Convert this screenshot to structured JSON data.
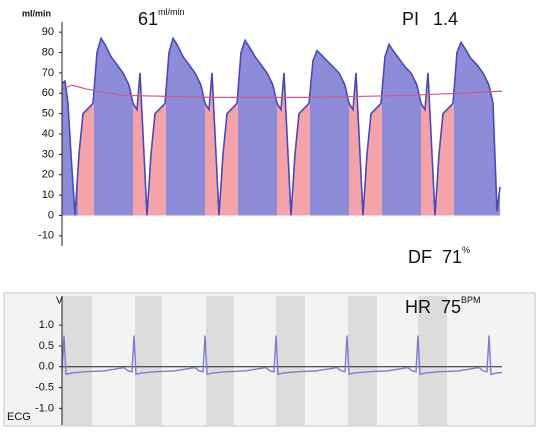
{
  "chart_data": [
    {
      "type": "area",
      "y_label": "ml/min",
      "readouts": [
        {
          "value": 61,
          "unit": "ml/min"
        },
        {
          "label": "PI",
          "value": 1.4
        },
        {
          "label": "DF",
          "value": 71,
          "unit": "%"
        }
      ],
      "x": [
        0,
        3,
        6,
        9,
        13,
        17,
        21,
        27,
        31,
        35,
        39,
        43,
        49,
        55,
        61,
        67,
        71,
        75,
        78,
        81,
        85,
        89,
        93,
        99,
        103,
        107,
        111,
        115,
        121,
        127,
        133,
        139,
        143,
        147,
        150,
        153,
        157,
        161,
        165,
        171,
        175,
        179,
        183,
        187,
        193,
        199,
        205,
        211,
        215,
        219,
        222,
        225,
        229,
        233,
        237,
        243,
        247,
        251,
        255,
        259,
        265,
        271,
        277,
        283,
        287,
        291,
        294,
        297,
        301,
        305,
        309,
        315,
        319,
        323,
        327,
        331,
        337,
        343,
        349,
        355,
        359,
        363,
        366,
        369,
        373,
        377,
        381,
        387,
        391,
        395,
        399,
        403,
        409,
        415,
        421,
        427,
        431,
        435,
        438
      ],
      "values": [
        65,
        66,
        55,
        30,
        0,
        30,
        50,
        53,
        55,
        80,
        87,
        84,
        78,
        74,
        70,
        64,
        55,
        52,
        70,
        40,
        0,
        30,
        50,
        53,
        55,
        80,
        87,
        84,
        78,
        74,
        70,
        64,
        55,
        52,
        70,
        40,
        0,
        30,
        50,
        53,
        55,
        80,
        86,
        83,
        78,
        74,
        70,
        64,
        55,
        52,
        70,
        40,
        0,
        30,
        50,
        53,
        55,
        76,
        81,
        79,
        76,
        73,
        70,
        64,
        55,
        52,
        70,
        40,
        0,
        30,
        50,
        53,
        55,
        78,
        84,
        81,
        77,
        73,
        70,
        64,
        55,
        52,
        70,
        40,
        0,
        30,
        50,
        53,
        55,
        80,
        85,
        82,
        77,
        74,
        70,
        64,
        55,
        2,
        14
      ],
      "color": "#8c8cd8",
      "line_color": "#4a4ab4",
      "diastole": [
        [
          16,
          32
        ],
        [
          71,
          104
        ],
        [
          143,
          176
        ],
        [
          215,
          248
        ],
        [
          287,
          320
        ],
        [
          359,
          392
        ]
      ],
      "diastole_color": "#f5a3ab",
      "mean": {
        "x": [
          0,
          10,
          25,
          60,
          150,
          250,
          350,
          440
        ],
        "values": [
          62,
          64,
          62,
          59,
          58,
          58,
          59,
          61
        ],
        "color": "#d2588a"
      },
      "xlim": [
        0,
        440
      ],
      "ylim": [
        -15,
        95
      ],
      "yticks": [
        -10,
        0,
        10,
        20,
        30,
        40,
        50,
        60,
        70,
        80,
        90
      ]
    },
    {
      "type": "line",
      "y_label": "V",
      "label": "ECG",
      "readouts": [
        {
          "label": "HR",
          "value": 75,
          "unit": "BPM"
        }
      ],
      "x": [
        0,
        2,
        4,
        10,
        24,
        42,
        62,
        66,
        70,
        72,
        74,
        80,
        94,
        112,
        133,
        137,
        141,
        143,
        145,
        151,
        165,
        183,
        204,
        208,
        212,
        214,
        216,
        222,
        236,
        254,
        275,
        279,
        283,
        285,
        287,
        293,
        307,
        325,
        346,
        350,
        354,
        356,
        358,
        364,
        378,
        396,
        417,
        421,
        425,
        427,
        429,
        435,
        440
      ],
      "values": [
        -0.12,
        0.75,
        -0.18,
        -0.15,
        -0.12,
        -0.1,
        -0.02,
        -0.1,
        -0.12,
        0.75,
        -0.18,
        -0.15,
        -0.12,
        -0.1,
        -0.02,
        -0.1,
        -0.12,
        0.75,
        -0.18,
        -0.15,
        -0.12,
        -0.1,
        -0.02,
        -0.1,
        -0.12,
        0.75,
        -0.18,
        -0.15,
        -0.12,
        -0.1,
        -0.02,
        -0.1,
        -0.12,
        0.75,
        -0.18,
        -0.15,
        -0.12,
        -0.1,
        -0.02,
        -0.1,
        -0.12,
        0.75,
        -0.18,
        -0.15,
        -0.12,
        -0.1,
        -0.02,
        -0.1,
        -0.12,
        0.75,
        -0.18,
        -0.15,
        -0.14
      ],
      "color": "#7b7bd2",
      "shaded": [
        [
          0,
          30
        ],
        [
          73,
          100
        ],
        [
          144,
          172
        ],
        [
          214,
          243
        ],
        [
          286,
          315
        ],
        [
          356,
          385
        ]
      ],
      "shade_color": "#dcdcdc",
      "xlim": [
        0,
        440
      ],
      "ylim": [
        -1.4,
        1.7
      ],
      "yticks": [
        {
          "value": 1,
          "label": "1.0"
        },
        0.5,
        {
          "value": 0,
          "label": "0.0"
        },
        -0.5,
        {
          "value": -1,
          "label": "-1.0"
        }
      ]
    }
  ]
}
